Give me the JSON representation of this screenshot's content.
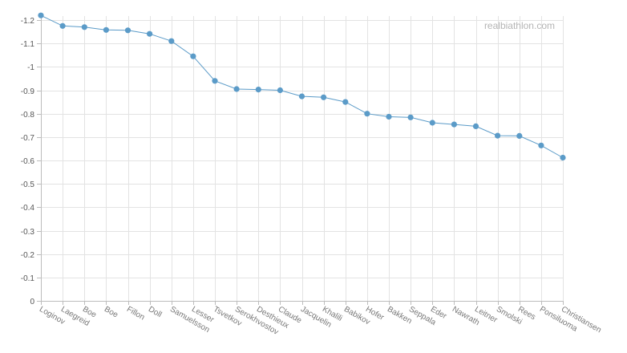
{
  "watermark": "realbiathlon.com",
  "colors": {
    "line": "#5b9bc8",
    "point": "#5b9bc8"
  },
  "chart_data": {
    "type": "line",
    "title": "",
    "xlabel": "",
    "ylabel": "",
    "grid": true,
    "ylim": [
      -1.2,
      0
    ],
    "y_ticks": [
      0,
      -0.1,
      -0.2,
      -0.3,
      -0.4,
      -0.5,
      -0.6,
      -0.7,
      -0.8,
      -0.9,
      -1,
      -1.1,
      -1.2
    ],
    "y_axis_inverted": true,
    "categories": [
      "Loginov",
      "Laegreid",
      "Boe",
      "Boe",
      "Fillon",
      "Doll",
      "Samuelsson",
      "Lesser",
      "Tsvetkov",
      "Serokhvostov",
      "Desthieux",
      "Claude",
      "Jacquelin",
      "Khalili",
      "Babikov",
      "Hofer",
      "Bakken",
      "Seppala",
      "Eder",
      "Nawrath",
      "Leitner",
      "Smolski",
      "Rees",
      "Ponsiluoma",
      "Christiansen"
    ],
    "series": [
      {
        "values": [
          -1.22,
          -1.175,
          -1.17,
          -1.158,
          -1.156,
          -1.141,
          -1.11,
          -1.045,
          -0.94,
          -0.905,
          -0.903,
          -0.9,
          -0.874,
          -0.87,
          -0.85,
          -0.8,
          -0.787,
          -0.784,
          -0.761,
          -0.754,
          -0.746,
          -0.706,
          -0.705,
          -0.664,
          -0.612
        ]
      }
    ]
  }
}
